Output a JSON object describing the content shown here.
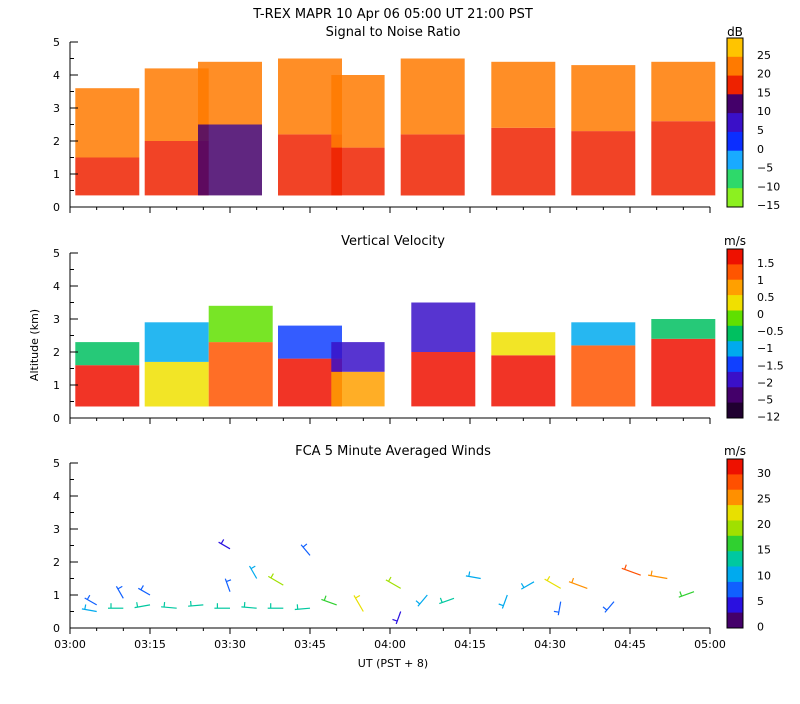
{
  "figure": {
    "title": "T-REX  MAPR 10 Apr 06  05:00 UT  21:00  PST",
    "xlabel": "UT  (PST + 8)",
    "ylabel": "Altitude (km)",
    "xticks": [
      "03:00",
      "03:15",
      "03:30",
      "03:45",
      "04:00",
      "04:15",
      "04:30",
      "04:45",
      "05:00"
    ]
  },
  "chart_data": [
    {
      "type": "heatmap",
      "title": "Signal to Noise Ratio",
      "unit": "dB",
      "xlim": [
        0,
        120
      ],
      "ylim": [
        0,
        5
      ],
      "yticks": [
        "0",
        "1",
        "2",
        "3",
        "4",
        "5"
      ],
      "colorbar": {
        "labels": [
          "25",
          "20",
          "15",
          "10",
          "5",
          "0",
          "−5",
          "−10",
          "−15"
        ],
        "colors": [
          "#ffc400",
          "#ff7a00",
          "#ee2200",
          "#44006a",
          "#3a10c8",
          "#0b2eff",
          "#19aaff",
          "#2ed96a",
          "#8cf020"
        ]
      },
      "data_gap_minutes": [
        59,
        61
      ],
      "columns": [
        {
          "x": 7,
          "base": 0.35,
          "bands": [
            [
              0.35,
              1.5,
              2
            ],
            [
              1.5,
              3.6,
              1
            ]
          ]
        },
        {
          "x": 20,
          "base": 0.35,
          "bands": [
            [
              0.35,
              2.0,
              2
            ],
            [
              2.0,
              4.2,
              1
            ]
          ]
        },
        {
          "x": 30,
          "base": 0.35,
          "bands": [
            [
              0.35,
              2.5,
              3
            ],
            [
              2.5,
              4.4,
              1
            ]
          ]
        },
        {
          "x": 45,
          "base": 0.35,
          "bands": [
            [
              0.35,
              2.2,
              2
            ],
            [
              2.2,
              4.5,
              1
            ]
          ]
        },
        {
          "x": 55,
          "base": 0.35,
          "bands": [
            [
              0.35,
              1.8,
              2
            ],
            [
              1.8,
              4.0,
              1
            ]
          ]
        },
        {
          "x": 68,
          "base": 0.35,
          "bands": [
            [
              0.35,
              2.2,
              2
            ],
            [
              2.2,
              4.5,
              1
            ]
          ]
        },
        {
          "x": 85,
          "base": 0.35,
          "bands": [
            [
              0.35,
              2.4,
              2
            ],
            [
              2.4,
              4.4,
              1
            ]
          ]
        },
        {
          "x": 100,
          "base": 0.35,
          "bands": [
            [
              0.35,
              2.3,
              2
            ],
            [
              2.3,
              4.3,
              1
            ]
          ]
        },
        {
          "x": 115,
          "base": 0.35,
          "bands": [
            [
              0.35,
              2.6,
              2
            ],
            [
              2.6,
              4.4,
              1
            ]
          ]
        }
      ]
    },
    {
      "type": "heatmap",
      "title": "Vertical Velocity",
      "unit": "m/s",
      "xlim": [
        0,
        120
      ],
      "ylim": [
        0,
        5
      ],
      "yticks": [
        "0",
        "1",
        "2",
        "3",
        "4",
        "5"
      ],
      "colorbar": {
        "labels": [
          "1.5",
          "1",
          "0.5",
          "0",
          "−0.5",
          "−1",
          "−1.5",
          "−2",
          "−5",
          "−12"
        ],
        "colors": [
          "#ee1100",
          "#ff5500",
          "#ffa000",
          "#f0e000",
          "#60e000",
          "#00c060",
          "#00aaee",
          "#1040ff",
          "#3a10c8",
          "#44006a",
          "#200030"
        ]
      },
      "data_gap_minutes": [
        59,
        61
      ],
      "columns": [
        {
          "x": 7,
          "base": 0.35,
          "bands": [
            [
              0.35,
              1.6,
              0
            ],
            [
              1.6,
              2.3,
              5
            ]
          ]
        },
        {
          "x": 20,
          "base": 0.35,
          "bands": [
            [
              0.35,
              1.7,
              3
            ],
            [
              1.7,
              2.9,
              6
            ]
          ]
        },
        {
          "x": 32,
          "base": 0.35,
          "bands": [
            [
              0.35,
              2.3,
              1
            ],
            [
              2.3,
              3.4,
              4
            ]
          ]
        },
        {
          "x": 45,
          "base": 0.35,
          "bands": [
            [
              0.35,
              1.8,
              0
            ],
            [
              1.8,
              2.8,
              7
            ]
          ]
        },
        {
          "x": 55,
          "base": 0.35,
          "bands": [
            [
              0.35,
              1.4,
              2
            ],
            [
              1.4,
              2.3,
              8
            ]
          ]
        },
        {
          "x": 70,
          "base": 0.35,
          "bands": [
            [
              0.35,
              2.0,
              0
            ],
            [
              2.0,
              3.5,
              8
            ]
          ]
        },
        {
          "x": 85,
          "base": 0.35,
          "bands": [
            [
              0.35,
              1.9,
              0
            ],
            [
              1.9,
              2.6,
              3
            ]
          ]
        },
        {
          "x": 100,
          "base": 0.35,
          "bands": [
            [
              0.35,
              2.2,
              1
            ],
            [
              2.2,
              2.9,
              6
            ]
          ]
        },
        {
          "x": 115,
          "base": 0.35,
          "bands": [
            [
              0.35,
              2.4,
              0
            ],
            [
              2.4,
              3.0,
              5
            ]
          ]
        }
      ]
    },
    {
      "type": "scatter",
      "title": "FCA 5 Minute Averaged Winds",
      "unit": "m/s",
      "xlim": [
        0,
        120
      ],
      "ylim": [
        0,
        5
      ],
      "yticks": [
        "0",
        "1",
        "2",
        "3",
        "4",
        "5"
      ],
      "colorbar": {
        "labels": [
          "30",
          "25",
          "20",
          "15",
          "10",
          "5",
          "0"
        ],
        "colors": [
          "#ee1100",
          "#ff5000",
          "#ff9000",
          "#e8e000",
          "#a0e000",
          "#30d030",
          "#00c8a0",
          "#00aaee",
          "#1060ff",
          "#2a10e0",
          "#44006a"
        ]
      },
      "winds": [
        {
          "t": 5,
          "h": 0.5,
          "speed": 10,
          "dir": 280
        },
        {
          "t": 5,
          "h": 0.7,
          "speed": 6,
          "dir": 300
        },
        {
          "t": 10,
          "h": 0.6,
          "speed": 11,
          "dir": 270
        },
        {
          "t": 10,
          "h": 0.9,
          "speed": 6,
          "dir": 330
        },
        {
          "t": 15,
          "h": 0.7,
          "speed": 12,
          "dir": 260
        },
        {
          "t": 15,
          "h": 1.0,
          "speed": 5,
          "dir": 300
        },
        {
          "t": 20,
          "h": 0.6,
          "speed": 12,
          "dir": 275
        },
        {
          "t": 25,
          "h": 0.7,
          "speed": 11,
          "dir": 265
        },
        {
          "t": 30,
          "h": 0.6,
          "speed": 12,
          "dir": 270
        },
        {
          "t": 30,
          "h": 1.1,
          "speed": 6,
          "dir": 340
        },
        {
          "t": 30,
          "h": 2.4,
          "speed": 4,
          "dir": 300
        },
        {
          "t": 35,
          "h": 0.6,
          "speed": 11,
          "dir": 275
        },
        {
          "t": 35,
          "h": 1.5,
          "speed": 8,
          "dir": 330
        },
        {
          "t": 40,
          "h": 0.6,
          "speed": 12,
          "dir": 270
        },
        {
          "t": 40,
          "h": 1.3,
          "speed": 18,
          "dir": 300
        },
        {
          "t": 45,
          "h": 0.6,
          "speed": 11,
          "dir": 265
        },
        {
          "t": 45,
          "h": 2.2,
          "speed": 6,
          "dir": 320
        },
        {
          "t": 50,
          "h": 0.7,
          "speed": 14,
          "dir": 290
        },
        {
          "t": 55,
          "h": 0.5,
          "speed": 22,
          "dir": 330
        },
        {
          "t": 62,
          "h": 1.2,
          "speed": 17,
          "dir": 300
        },
        {
          "t": 62,
          "h": 0.5,
          "speed": 4,
          "dir": 200
        },
        {
          "t": 67,
          "h": 1.0,
          "speed": 9,
          "dir": 220
        },
        {
          "t": 72,
          "h": 0.9,
          "speed": 12,
          "dir": 250
        },
        {
          "t": 77,
          "h": 1.5,
          "speed": 10,
          "dir": 280
        },
        {
          "t": 82,
          "h": 1.0,
          "speed": 8,
          "dir": 200
        },
        {
          "t": 87,
          "h": 1.4,
          "speed": 9,
          "dir": 240
        },
        {
          "t": 92,
          "h": 0.8,
          "speed": 6,
          "dir": 190
        },
        {
          "t": 92,
          "h": 1.2,
          "speed": 22,
          "dir": 300
        },
        {
          "t": 97,
          "h": 1.2,
          "speed": 25,
          "dir": 290
        },
        {
          "t": 102,
          "h": 0.8,
          "speed": 7,
          "dir": 220
        },
        {
          "t": 107,
          "h": 1.6,
          "speed": 27,
          "dir": 290
        },
        {
          "t": 112,
          "h": 1.5,
          "speed": 25,
          "dir": 280
        },
        {
          "t": 117,
          "h": 1.1,
          "speed": 14,
          "dir": 250
        }
      ]
    }
  ]
}
